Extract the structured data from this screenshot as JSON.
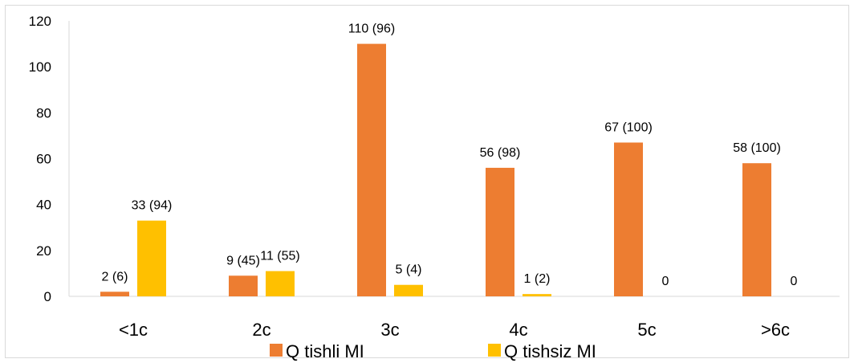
{
  "chart_data": {
    "type": "bar",
    "categories": [
      "<1c",
      "2c",
      "3c",
      "4c",
      "5c",
      ">6c"
    ],
    "series": [
      {
        "name": "Q tishli MI",
        "color": "#ED7D31",
        "values": [
          2,
          9,
          110,
          56,
          67,
          58
        ],
        "labels": [
          "2 (6)",
          "9 (45)",
          "110 (96)",
          "56 (98)",
          "67 (100)",
          "58 (100)"
        ]
      },
      {
        "name": "Q tishsiz MI",
        "color": "#FFC000",
        "values": [
          33,
          11,
          5,
          1,
          0,
          0
        ],
        "labels": [
          "33 (94)",
          "11 (55)",
          "5 (4)",
          "1 (2)",
          "0",
          "0"
        ]
      }
    ],
    "y_ticks": [
      "0",
      "20",
      "40",
      "60",
      "80",
      "100",
      "120"
    ],
    "ylim": [
      0,
      120
    ],
    "legend_position": "bottom",
    "grid": false
  }
}
